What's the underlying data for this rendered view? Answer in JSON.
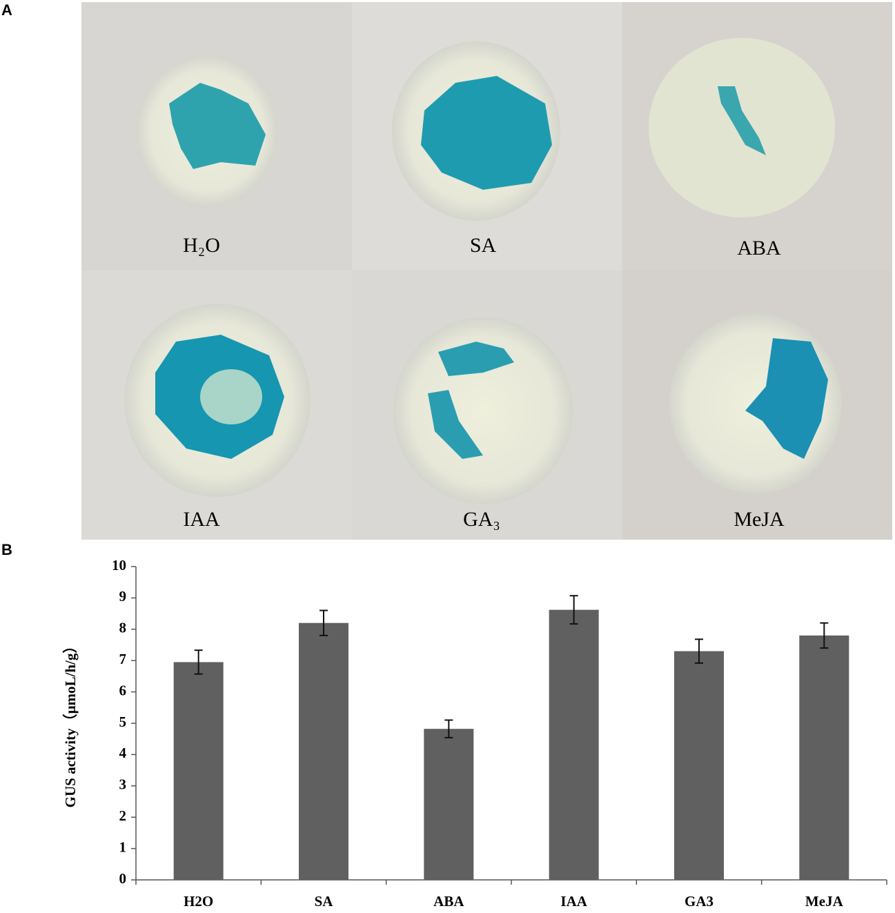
{
  "panel_labels": [
    "A",
    "B"
  ],
  "photo": {
    "labels": [
      "H₂O",
      "SA",
      "ABA",
      "IAA",
      "GA₃",
      "MeJA"
    ]
  },
  "chart_data": {
    "type": "bar",
    "y_label": "GUS activity（μmoL/h/g）",
    "categories": [
      "H2O",
      "SA",
      "ABA",
      "IAA",
      "GA3",
      "MeJA"
    ],
    "values": [
      6.95,
      8.2,
      4.82,
      8.62,
      7.3,
      7.8
    ],
    "errors": [
      0.38,
      0.4,
      0.28,
      0.45,
      0.38,
      0.4
    ],
    "color": "#606060",
    "ylim": [
      0,
      10
    ],
    "yticks": [
      0,
      1,
      2,
      3,
      4,
      5,
      6,
      7,
      8,
      9,
      10
    ]
  }
}
